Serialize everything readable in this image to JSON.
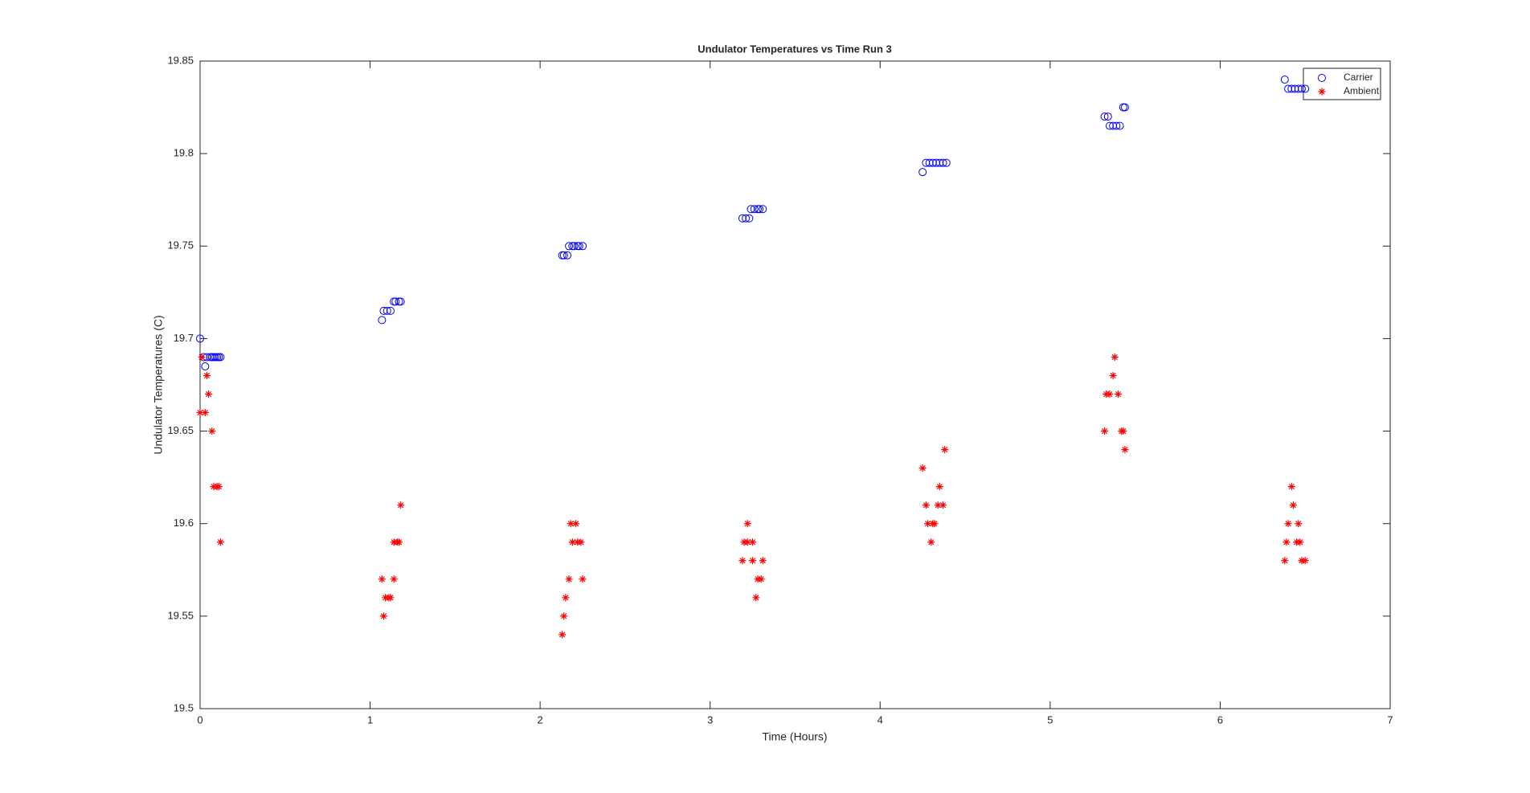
{
  "chart_data": {
    "type": "scatter",
    "title": "Undulator Temperatures vs Time Run 3",
    "x_label": "Time (Hours)",
    "y_label": "Undulator Temperatures (C)",
    "xlim": [
      0,
      7
    ],
    "xticks": [
      0,
      1,
      2,
      3,
      4,
      5,
      6,
      7
    ],
    "ylim": [
      19.5,
      19.85
    ],
    "yticks": [
      19.5,
      19.55,
      19.6,
      19.65,
      19.7,
      19.75,
      19.8,
      19.85
    ],
    "grid": false,
    "legend": "northeast",
    "series": [
      {
        "name": "Carrier",
        "color": "#0000ff",
        "marker": "circle",
        "x": [
          0.0,
          0.02,
          0.03,
          0.04,
          0.06,
          0.07,
          0.08,
          0.09,
          0.1,
          0.11,
          0.12,
          1.07,
          1.08,
          1.1,
          1.12,
          1.14,
          1.15,
          1.17,
          1.18,
          2.13,
          2.14,
          2.16,
          2.17,
          2.19,
          2.2,
          2.22,
          2.23,
          2.25,
          3.19,
          3.21,
          3.23,
          3.24,
          3.26,
          3.28,
          3.29,
          3.31,
          4.25,
          4.27,
          4.29,
          4.31,
          4.33,
          4.35,
          4.37,
          4.39,
          5.32,
          5.34,
          5.35,
          5.37,
          5.39,
          5.41,
          5.43,
          5.44,
          6.38,
          6.4,
          6.42,
          6.44,
          6.46,
          6.48,
          6.5
        ],
        "values": [
          19.7,
          19.69,
          19.685,
          19.69,
          19.69,
          19.69,
          19.69,
          19.69,
          19.69,
          19.69,
          19.69,
          19.71,
          19.715,
          19.715,
          19.715,
          19.72,
          19.72,
          19.72,
          19.72,
          19.745,
          19.745,
          19.745,
          19.75,
          19.75,
          19.75,
          19.75,
          19.75,
          19.75,
          19.765,
          19.765,
          19.765,
          19.77,
          19.77,
          19.77,
          19.77,
          19.77,
          19.79,
          19.795,
          19.795,
          19.795,
          19.795,
          19.795,
          19.795,
          19.795,
          19.82,
          19.82,
          19.815,
          19.815,
          19.815,
          19.815,
          19.825,
          19.825,
          19.84,
          19.835,
          19.835,
          19.835,
          19.835,
          19.835,
          19.835
        ]
      },
      {
        "name": "Ambient",
        "color": "#ff0000",
        "marker": "asterisk",
        "x": [
          0.01,
          0.0,
          0.03,
          0.04,
          0.05,
          0.07,
          0.08,
          0.1,
          0.11,
          0.12,
          1.07,
          1.08,
          1.09,
          1.11,
          1.12,
          1.14,
          1.14,
          1.16,
          1.17,
          1.18,
          2.13,
          2.14,
          2.15,
          2.17,
          2.18,
          2.21,
          2.19,
          2.22,
          2.24,
          2.25,
          3.19,
          3.22,
          3.2,
          3.22,
          3.25,
          3.25,
          3.27,
          3.28,
          3.3,
          3.31,
          4.25,
          4.27,
          4.28,
          4.31,
          4.32,
          4.3,
          4.35,
          4.34,
          4.37,
          4.38,
          5.32,
          5.33,
          5.35,
          5.37,
          5.38,
          5.4,
          5.42,
          5.43,
          5.44,
          6.38,
          6.39,
          6.4,
          6.42,
          6.43,
          6.45,
          6.47,
          6.46,
          6.48,
          6.5
        ],
        "values": [
          19.69,
          19.66,
          19.66,
          19.68,
          19.67,
          19.65,
          19.62,
          19.62,
          19.62,
          19.59,
          19.57,
          19.55,
          19.56,
          19.56,
          19.56,
          19.57,
          19.59,
          19.59,
          19.59,
          19.61,
          19.54,
          19.55,
          19.56,
          19.57,
          19.6,
          19.6,
          19.59,
          19.59,
          19.59,
          19.57,
          19.58,
          19.6,
          19.59,
          19.59,
          19.59,
          19.58,
          19.56,
          19.57,
          19.57,
          19.58,
          19.63,
          19.61,
          19.6,
          19.6,
          19.6,
          19.59,
          19.62,
          19.61,
          19.61,
          19.64,
          19.65,
          19.67,
          19.67,
          19.68,
          19.69,
          19.67,
          19.65,
          19.65,
          19.64,
          19.58,
          19.59,
          19.6,
          19.62,
          19.61,
          19.59,
          19.59,
          19.6,
          19.58,
          19.58
        ]
      }
    ]
  }
}
